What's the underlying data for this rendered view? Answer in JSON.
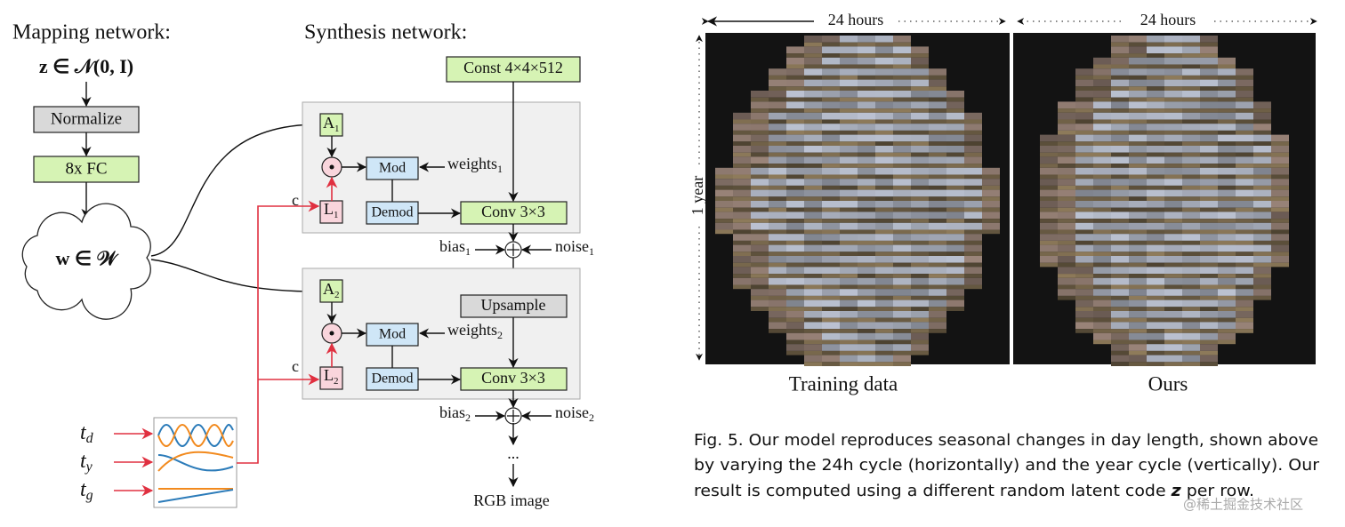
{
  "mapping": {
    "title": "Mapping network:",
    "input": "z ∈ 𝒩(0, I)",
    "normalize": "Normalize",
    "fc": "8x FC",
    "latent": "w ∈ 𝒲"
  },
  "synthesis": {
    "title": "Synthesis network:",
    "const": "Const 4×4×512",
    "blocks": [
      {
        "affine": {
          "text": "A",
          "sub": "1"
        },
        "mod": "Mod",
        "weights": {
          "text": "weights",
          "sub": "1"
        },
        "condition": {
          "text": "L",
          "sub": "1"
        },
        "demod": "Demod",
        "conv": "Conv 3×3",
        "c": "c",
        "bias": {
          "text": "bias",
          "sub": "1"
        },
        "noise": {
          "text": "noise",
          "sub": "1"
        }
      },
      {
        "affine": {
          "text": "A",
          "sub": "2"
        },
        "mod": "Mod",
        "weights": {
          "text": "weights",
          "sub": "2"
        },
        "condition": {
          "text": "L",
          "sub": "2"
        },
        "demod": "Demod",
        "conv": "Conv 3×3",
        "c": "c",
        "bias": {
          "text": "bias",
          "sub": "2"
        },
        "noise": {
          "text": "noise",
          "sub": "2"
        }
      }
    ],
    "upsample": "Upsample",
    "ellipsis": "...",
    "output": "RGB image"
  },
  "time_inputs": [
    {
      "text": "t",
      "sub": "d"
    },
    {
      "text": "t",
      "sub": "y"
    },
    {
      "text": "t",
      "sub": "g"
    }
  ],
  "figure": {
    "header_left": "24 hours",
    "header_right": "24 hours",
    "vertical": "1 year",
    "panels": [
      "Training data",
      "Ours"
    ]
  },
  "caption": {
    "lines": [
      "Fig. 5.  Our model reproduces seasonal changes in day length, shown above",
      "by varying the 24h cycle (horizontally) and the year cycle (vertically). Our"
    ],
    "last_line": {
      "before": "result is computed using a different random latent code ",
      "symbol": "z",
      "after": " per row."
    }
  },
  "watermark": "@稀土掘金技术社区"
}
